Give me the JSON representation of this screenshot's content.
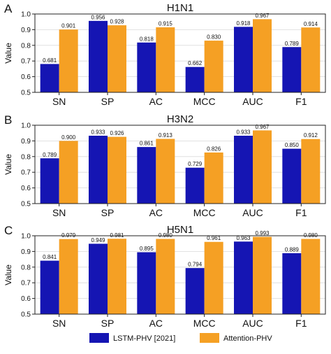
{
  "legend": {
    "entries": [
      {
        "name": "LSTM-PHV [2021]",
        "color": "#1515b3"
      },
      {
        "name": "Attention-PHV",
        "color": "#f5a024"
      }
    ]
  },
  "chart_data": [
    {
      "type": "bar",
      "panel": "A",
      "title": "H1N1",
      "ylabel": "Value",
      "xlabel": "",
      "ylim": [
        0.5,
        1.0
      ],
      "yticks": [
        0.5,
        0.6,
        0.7,
        0.8,
        0.9,
        1.0
      ],
      "grid": true,
      "categories": [
        "SN",
        "SP",
        "AC",
        "MCC",
        "AUC",
        "F1"
      ],
      "series": [
        {
          "name": "LSTM-PHV [2021]",
          "color": "#1515b3",
          "values": [
            0.681,
            0.956,
            0.818,
            0.662,
            0.918,
            0.789
          ]
        },
        {
          "name": "Attention-PHV",
          "color": "#f5a024",
          "values": [
            0.901,
            0.928,
            0.915,
            0.83,
            0.967,
            0.914
          ]
        }
      ]
    },
    {
      "type": "bar",
      "panel": "B",
      "title": "H3N2",
      "ylabel": "Value",
      "xlabel": "",
      "ylim": [
        0.5,
        1.0
      ],
      "yticks": [
        0.5,
        0.6,
        0.7,
        0.8,
        0.9,
        1.0
      ],
      "grid": true,
      "categories": [
        "SN",
        "SP",
        "AC",
        "MCC",
        "AUC",
        "F1"
      ],
      "series": [
        {
          "name": "LSTM-PHV [2021]",
          "color": "#1515b3",
          "values": [
            0.789,
            0.933,
            0.861,
            0.729,
            0.933,
            0.85
          ]
        },
        {
          "name": "Attention-PHV",
          "color": "#f5a024",
          "values": [
            0.9,
            0.926,
            0.913,
            0.826,
            0.967,
            0.912
          ]
        }
      ]
    },
    {
      "type": "bar",
      "panel": "C",
      "title": "H5N1",
      "ylabel": "Value",
      "xlabel": "",
      "ylim": [
        0.5,
        1.0
      ],
      "yticks": [
        0.5,
        0.6,
        0.7,
        0.8,
        0.9,
        1.0
      ],
      "grid": true,
      "categories": [
        "SN",
        "SP",
        "AC",
        "MCC",
        "AUC",
        "F1"
      ],
      "series": [
        {
          "name": "LSTM-PHV [2021]",
          "color": "#1515b3",
          "values": [
            0.841,
            0.949,
            0.895,
            0.794,
            0.963,
            0.889
          ]
        },
        {
          "name": "Attention-PHV",
          "color": "#f5a024",
          "values": [
            0.979,
            0.981,
            0.98,
            0.961,
            0.993,
            0.98
          ]
        }
      ]
    }
  ]
}
